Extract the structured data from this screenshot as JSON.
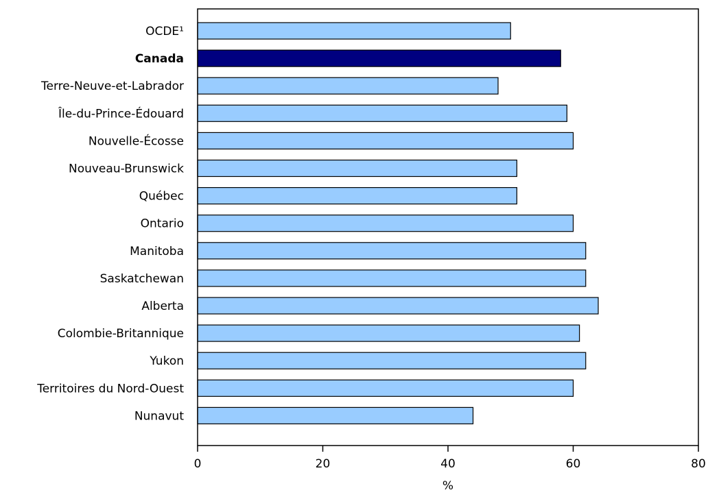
{
  "chart_data": {
    "type": "bar",
    "orientation": "horizontal",
    "categories": [
      "OCDE¹",
      "Canada",
      "Terre-Neuve-et-Labrador",
      "Île-du-Prince-Édouard",
      "Nouvelle-Écosse",
      "Nouveau-Brunswick",
      "Québec",
      "Ontario",
      "Manitoba",
      "Saskatchewan",
      "Alberta",
      "Colombie-Britannique",
      "Yukon",
      "Territoires du Nord-Ouest",
      "Nunavut"
    ],
    "values": [
      50,
      58,
      48,
      59,
      60,
      51,
      51,
      60,
      62,
      62,
      64,
      61,
      62,
      60,
      44
    ],
    "highlight_category": "Canada",
    "xlabel": "%",
    "ylabel": "",
    "xlim": [
      0,
      80
    ],
    "xticks": [
      "0",
      "20",
      "40",
      "60",
      "80"
    ],
    "grid": false,
    "colors": {
      "bar": "#99ccff",
      "highlight": "#000080",
      "outline": "#000000"
    }
  }
}
